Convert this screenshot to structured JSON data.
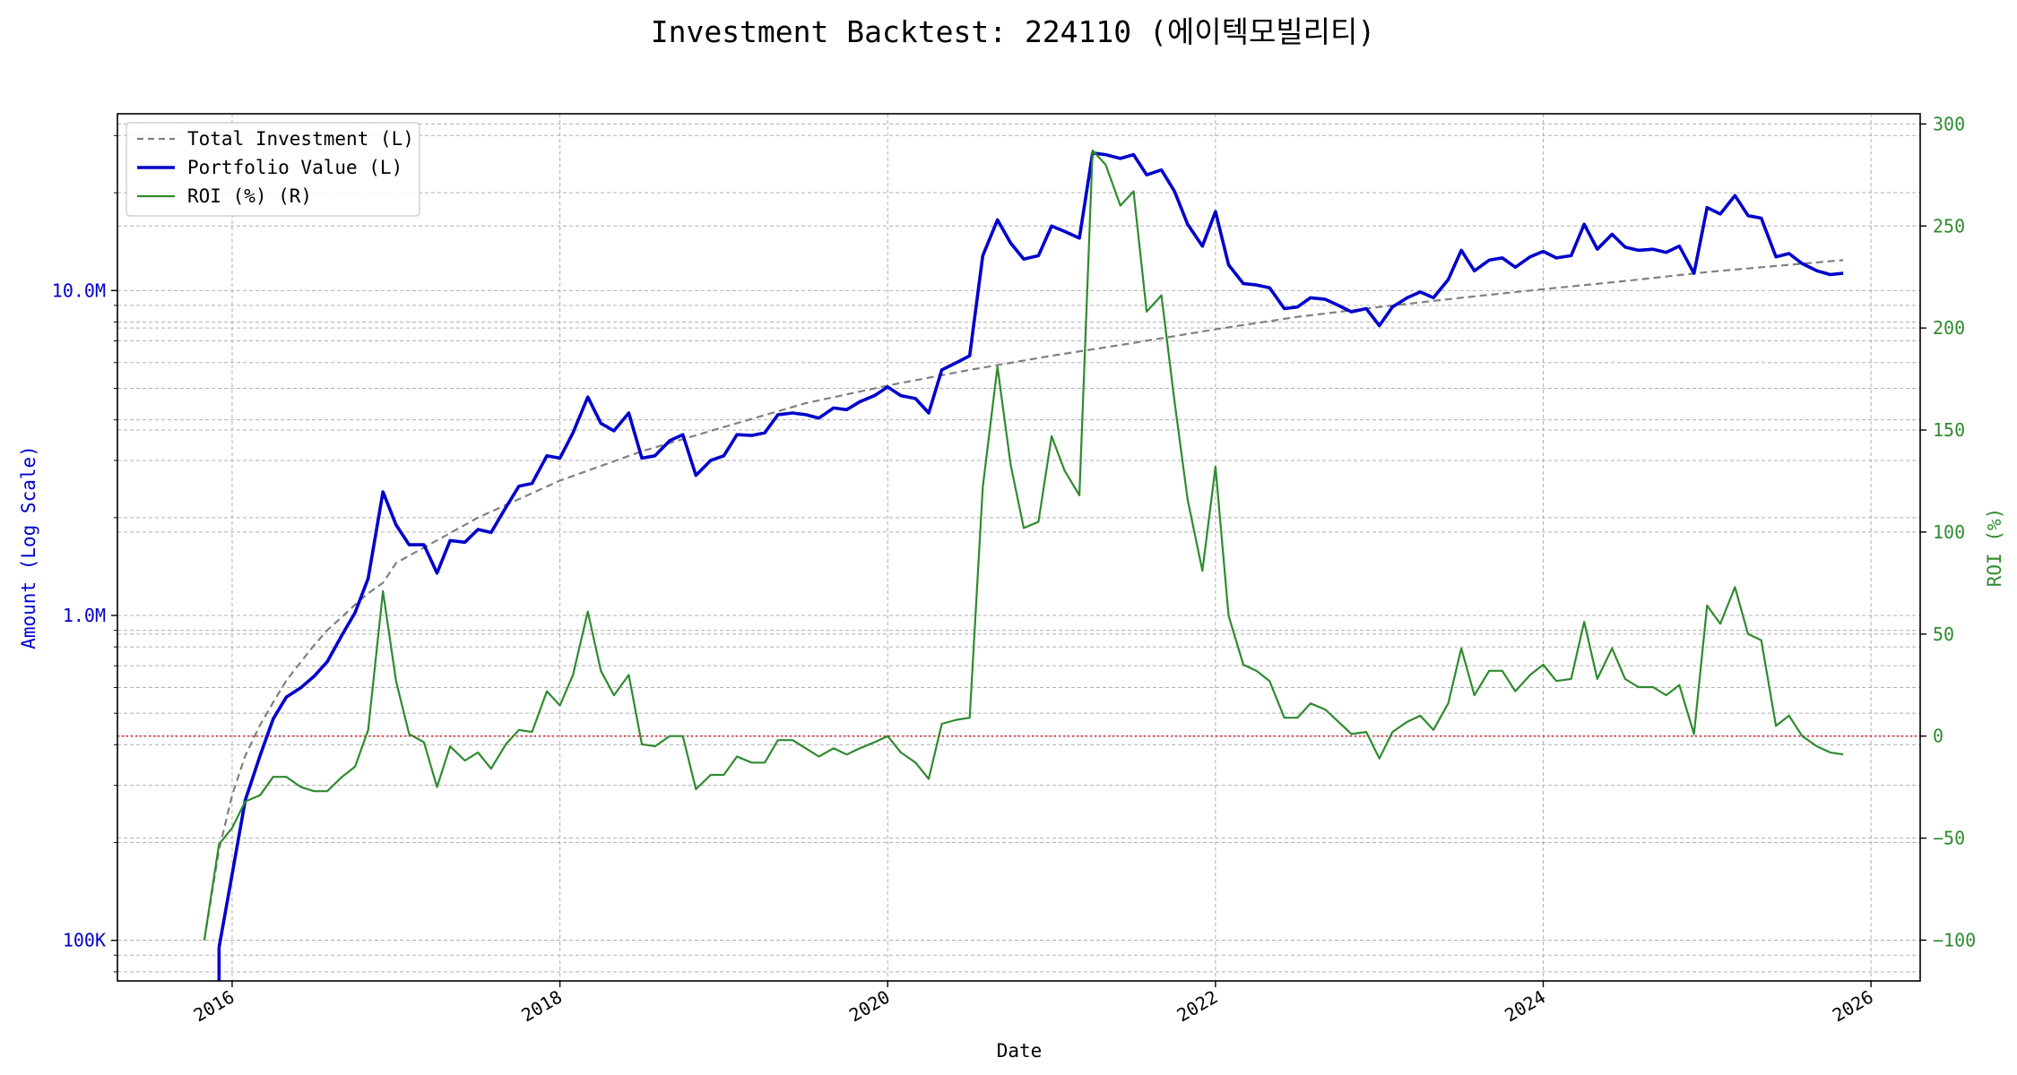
{
  "chart_data": {
    "type": "line",
    "title": "Investment Backtest: 224110 (에이텍모빌리티)",
    "xlabel": "Date",
    "ylabel_left": "Amount (Log Scale)",
    "ylabel_right": "ROI (%)",
    "left_scale": "log",
    "left_ylim": [
      75000,
      35000000
    ],
    "right_ylim": [
      -120,
      305
    ],
    "xlim": [
      2015.3,
      2026.3
    ],
    "grid": true,
    "legend_position": "top-left",
    "x_ticks": [
      {
        "x": 2016,
        "label": "2016"
      },
      {
        "x": 2018,
        "label": "2018"
      },
      {
        "x": 2020,
        "label": "2020"
      },
      {
        "x": 2022,
        "label": "2022"
      },
      {
        "x": 2024,
        "label": "2024"
      },
      {
        "x": 2026,
        "label": "2026"
      }
    ],
    "left_ticks": [
      {
        "value": 100000,
        "label": "100K"
      },
      {
        "value": 1000000,
        "label": "1.0M"
      },
      {
        "value": 10000000,
        "label": "10.0M"
      }
    ],
    "right_ticks": [
      -100,
      -50,
      0,
      50,
      100,
      150,
      200,
      250,
      300
    ],
    "zero_line": {
      "value": 0,
      "color": "#d62728"
    },
    "colors": {
      "investment": "#808080",
      "portfolio": "#0000cc",
      "roi": "#2e8b2e",
      "left_axis": "#0000cc",
      "right_axis": "#2e8b2e"
    },
    "series": [
      {
        "name": "Total Investment (L)",
        "axis": "left",
        "style": "dashed",
        "x": [
          2015.83,
          2015.92,
          2016.0,
          2016.08,
          2016.17,
          2016.25,
          2016.33,
          2016.42,
          2016.5,
          2016.58,
          2016.67,
          2016.75,
          2016.83,
          2016.92,
          2017.0,
          2017.5,
          2018.0,
          2018.5,
          2019.0,
          2019.5,
          2020.0,
          2020.5,
          2021.0,
          2021.5,
          2022.0,
          2022.5,
          2023.0,
          2023.5,
          2024.0,
          2024.5,
          2025.0,
          2025.5,
          2025.83
        ],
        "y": [
          100000,
          190000,
          280000,
          370000,
          460000,
          540000,
          630000,
          720000,
          810000,
          900000,
          990000,
          1080000,
          1170000,
          1260000,
          1450000,
          2000000,
          2600000,
          3200000,
          3800000,
          4500000,
          5100000,
          5700000,
          6300000,
          6900000,
          7600000,
          8300000,
          8900000,
          9500000,
          10100000,
          10700000,
          11400000,
          12000000,
          12400000
        ]
      },
      {
        "name": "Portfolio Value (L)",
        "axis": "left",
        "style": "solid",
        "x": [
          2015.92,
          2016.0,
          2016.08,
          2016.17,
          2016.25,
          2016.33,
          2016.42,
          2016.5,
          2016.58,
          2016.67,
          2016.75,
          2016.83,
          2016.92,
          2017.0,
          2017.08,
          2017.17,
          2017.25,
          2017.33,
          2017.42,
          2017.5,
          2017.58,
          2017.67,
          2017.75,
          2017.83,
          2017.92,
          2018.0,
          2018.08,
          2018.17,
          2018.25,
          2018.33,
          2018.42,
          2018.5,
          2018.58,
          2018.67,
          2018.75,
          2018.83,
          2018.92,
          2019.0,
          2019.08,
          2019.17,
          2019.25,
          2019.33,
          2019.42,
          2019.5,
          2019.58,
          2019.67,
          2019.75,
          2019.83,
          2019.92,
          2020.0,
          2020.08,
          2020.17,
          2020.25,
          2020.33,
          2020.42,
          2020.5,
          2020.58,
          2020.67,
          2020.75,
          2020.83,
          2020.92,
          2021.0,
          2021.08,
          2021.17,
          2021.25,
          2021.33,
          2021.42,
          2021.5,
          2021.58,
          2021.67,
          2021.75,
          2021.83,
          2021.92,
          2022.0,
          2022.08,
          2022.17,
          2022.25,
          2022.33,
          2022.42,
          2022.5,
          2022.58,
          2022.67,
          2022.75,
          2022.83,
          2022.92,
          2023.0,
          2023.08,
          2023.17,
          2023.25,
          2023.33,
          2023.42,
          2023.5,
          2023.58,
          2023.67,
          2023.75,
          2023.83,
          2023.92,
          2024.0,
          2024.08,
          2024.17,
          2024.25,
          2024.33,
          2024.42,
          2024.5,
          2024.58,
          2024.67,
          2024.75,
          2024.83,
          2024.92,
          2025.0,
          2025.08,
          2025.17,
          2025.25,
          2025.33,
          2025.42,
          2025.5,
          2025.58,
          2025.67,
          2025.75,
          2025.83
        ],
        "y": [
          95000,
          160000,
          270000,
          370000,
          480000,
          560000,
          600000,
          650000,
          720000,
          870000,
          1020000,
          1300000,
          2400000,
          1900000,
          1650000,
          1650000,
          1350000,
          1700000,
          1680000,
          1840000,
          1800000,
          2150000,
          2500000,
          2550000,
          3100000,
          3050000,
          3650000,
          4700000,
          3900000,
          3700000,
          4200000,
          3050000,
          3100000,
          3450000,
          3600000,
          2700000,
          3000000,
          3100000,
          3600000,
          3580000,
          3650000,
          4150000,
          4200000,
          4150000,
          4050000,
          4350000,
          4300000,
          4550000,
          4750000,
          5050000,
          4750000,
          4650000,
          4200000,
          5700000,
          6000000,
          6300000,
          12800000,
          16500000,
          14000000,
          12500000,
          12800000,
          15800000,
          15200000,
          14500000,
          26500000,
          26200000,
          25500000,
          26200000,
          22700000,
          23500000,
          20200000,
          16000000,
          13700000,
          17500000,
          12000000,
          10500000,
          10400000,
          10200000,
          8800000,
          8900000,
          9500000,
          9400000,
          9000000,
          8600000,
          8800000,
          7800000,
          8900000,
          9500000,
          9900000,
          9500000,
          10800000,
          13300000,
          11500000,
          12400000,
          12600000,
          11800000,
          12700000,
          13200000,
          12600000,
          12800000,
          16000000,
          13400000,
          14900000,
          13600000,
          13300000,
          13400000,
          13100000,
          13700000,
          11300000,
          18000000,
          17200000,
          19600000,
          17000000,
          16700000,
          12700000,
          13000000,
          12100000,
          11500000,
          11200000,
          11300000
        ]
      },
      {
        "name": "ROI (%) (R)",
        "axis": "right",
        "style": "solid",
        "x": [
          2015.83,
          2015.92,
          2016.0,
          2016.08,
          2016.17,
          2016.25,
          2016.33,
          2016.42,
          2016.5,
          2016.58,
          2016.67,
          2016.75,
          2016.83,
          2016.92,
          2017.0,
          2017.08,
          2017.17,
          2017.25,
          2017.33,
          2017.42,
          2017.5,
          2017.58,
          2017.67,
          2017.75,
          2017.83,
          2017.92,
          2018.0,
          2018.08,
          2018.17,
          2018.25,
          2018.33,
          2018.42,
          2018.5,
          2018.58,
          2018.67,
          2018.75,
          2018.83,
          2018.92,
          2019.0,
          2019.08,
          2019.17,
          2019.25,
          2019.33,
          2019.42,
          2019.5,
          2019.58,
          2019.67,
          2019.75,
          2019.83,
          2019.92,
          2020.0,
          2020.08,
          2020.17,
          2020.25,
          2020.33,
          2020.42,
          2020.5,
          2020.58,
          2020.67,
          2020.75,
          2020.83,
          2020.92,
          2021.0,
          2021.08,
          2021.17,
          2021.25,
          2021.33,
          2021.42,
          2021.5,
          2021.58,
          2021.67,
          2021.75,
          2021.83,
          2021.92,
          2022.0,
          2022.08,
          2022.17,
          2022.25,
          2022.33,
          2022.42,
          2022.5,
          2022.58,
          2022.67,
          2022.75,
          2022.83,
          2022.92,
          2023.0,
          2023.08,
          2023.17,
          2023.25,
          2023.33,
          2023.42,
          2023.5,
          2023.58,
          2023.67,
          2023.75,
          2023.83,
          2023.92,
          2024.0,
          2024.08,
          2024.17,
          2024.25,
          2024.33,
          2024.42,
          2024.5,
          2024.58,
          2024.67,
          2024.75,
          2024.83,
          2024.92,
          2025.0,
          2025.08,
          2025.17,
          2025.25,
          2025.33,
          2025.42,
          2025.5,
          2025.58,
          2025.67,
          2025.75,
          2025.83
        ],
        "y": [
          -100,
          -53,
          -45,
          -32,
          -29,
          -20,
          -20,
          -25,
          -27,
          -27,
          -20,
          -15,
          3,
          71,
          27,
          1,
          -3,
          -25,
          -5,
          -12,
          -8,
          -16,
          -4,
          3,
          2,
          22,
          15,
          30,
          61,
          32,
          20,
          30,
          -4,
          -5,
          0,
          0,
          -26,
          -19,
          -19,
          -10,
          -13,
          -13,
          -2,
          -2,
          -6,
          -10,
          -6,
          -9,
          -6,
          -3,
          0,
          -8,
          -13,
          -21,
          6,
          8,
          9,
          122,
          181,
          133,
          102,
          105,
          147,
          130,
          118,
          287,
          280,
          260,
          267,
          208,
          216,
          164,
          116,
          81,
          132,
          59,
          35,
          32,
          27,
          9,
          9,
          16,
          13,
          7,
          1,
          2,
          -11,
          2,
          7,
          10,
          3,
          16,
          43,
          20,
          32,
          32,
          22,
          30,
          35,
          27,
          28,
          56,
          28,
          43,
          28,
          24,
          24,
          20,
          25,
          1,
          64,
          55,
          73,
          50,
          47,
          5,
          10,
          0,
          -5,
          -8,
          -9
        ]
      }
    ]
  }
}
